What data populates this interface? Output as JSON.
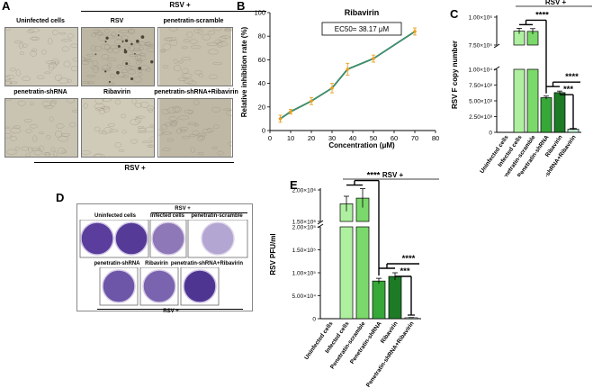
{
  "panels": {
    "a": {
      "label": "A",
      "header": "RSV +",
      "footer": "RSV +",
      "tiles": [
        {
          "caption": "Uninfected cells",
          "tone": "#cfc9b9"
        },
        {
          "caption": "RSV",
          "tone": "#bdb6a3"
        },
        {
          "caption": "penetratin-scramble",
          "tone": "#c7c0ad"
        },
        {
          "caption": "penetratin-shRNA",
          "tone": "#c9c3b2"
        },
        {
          "caption": "Ribavirin",
          "tone": "#d0cab8"
        },
        {
          "caption": "penetratin-shRNA+Ribavirin",
          "tone": "#bfb8a5"
        }
      ]
    },
    "b": {
      "label": "B",
      "ec50": "EC50= 38.17 μM"
    },
    "c": {
      "label": "C",
      "header": "RSV +"
    },
    "d": {
      "label": "D",
      "top_captions": [
        "Uninfected cells",
        "Infected cells",
        "penetratin-scramble"
      ],
      "top_header": "RSV +",
      "bottom_captions": [
        "penetratin-shRNA",
        "Ribavirin",
        "penetratin-shRNA+Ribavirin"
      ],
      "bottom_footer": "RSV +"
    },
    "e": {
      "label": "E",
      "header": "RSV +"
    }
  },
  "chart_data": [
    {
      "type": "line",
      "title": "Ribavirin",
      "xlabel": "Concentration (μM)",
      "ylabel": "Relative inhibition rate (%)",
      "xlim": [
        0,
        80
      ],
      "ylim": [
        0,
        100
      ],
      "x_ticks": [
        0,
        10,
        20,
        30,
        40,
        50,
        60,
        70,
        80
      ],
      "y_ticks": [
        0,
        20,
        40,
        60,
        80,
        100
      ],
      "x": [
        5,
        10,
        20,
        30,
        37.5,
        50,
        70
      ],
      "series": [
        {
          "values": [
            10,
            16,
            25,
            36,
            52,
            61,
            84
          ],
          "errors": [
            3,
            2,
            3,
            4,
            5,
            3,
            3
          ]
        }
      ],
      "colors": {
        "points": "#e8a020",
        "line": "#2a7a2a"
      }
    },
    {
      "type": "bar",
      "ylabel": "RSV F copy number",
      "categories": [
        "Uninfected cells",
        "Infected cells",
        "Penetratin-scramble",
        "Penetratin-shRNA",
        "Ribavirin",
        "Penetratin-shRNA+Ribavirin"
      ],
      "values": [
        0,
        875000,
        872000,
        5500,
        6300,
        500
      ],
      "errors": [
        0,
        25000,
        25000,
        250,
        250,
        100
      ],
      "upper_ticks": [
        "7.50×10⁵",
        "1.00×10⁶"
      ],
      "lower_ticks": [
        "0",
        "2.50×10³",
        "5.00×10³",
        "7.50×10³",
        "1.00×10⁴"
      ],
      "significance": [
        "****",
        "****",
        "***"
      ],
      "colors": [
        "#ffffff",
        "#aef0a0",
        "#7ad96a",
        "#35a838",
        "#1d7a25",
        "#bde8d0"
      ]
    },
    {
      "type": "bar",
      "ylabel": "RSV PFU/ml",
      "categories": [
        "Uninfected cells",
        "Infected cells",
        "Penetratin-scramble",
        "Penetratin-shRNA",
        "Ribavirin",
        "Penetratin-shRNA+Ribavirin"
      ],
      "values": [
        0,
        1780000,
        1870000,
        82000,
        92000,
        2000
      ],
      "errors": [
        0,
        120000,
        150000,
        6000,
        8000,
        500
      ],
      "upper_ticks": [
        "1.50×10⁶",
        "2.00×10⁶"
      ],
      "lower_ticks": [
        "0",
        "5.00×10⁴",
        "1.00×10⁵",
        "1.50×10⁵",
        "2.00×10⁵"
      ],
      "significance": [
        "****",
        "****",
        "***"
      ],
      "colors": [
        "#ffffff",
        "#aef0a0",
        "#7ad96a",
        "#35a838",
        "#1d7a25",
        "#bde8d0"
      ]
    }
  ]
}
